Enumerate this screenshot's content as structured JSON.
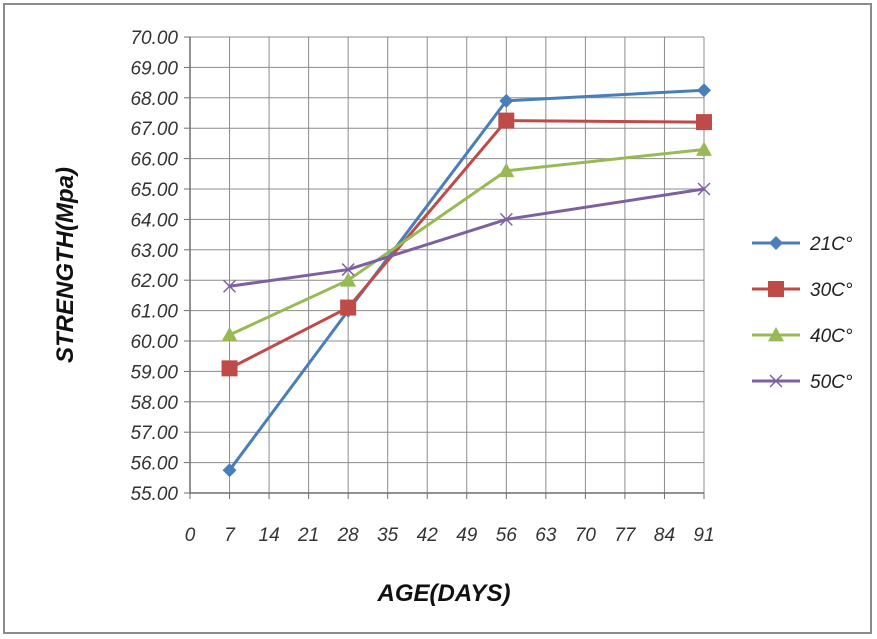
{
  "chart_data": {
    "type": "line",
    "xlabel": "AGE(DAYS)",
    "ylabel": "STRENGTH(Mpa)",
    "x": [
      7,
      28,
      56,
      91
    ],
    "xlim": [
      0,
      91
    ],
    "xticks": [
      "0",
      "7",
      "14",
      "21",
      "28",
      "35",
      "42",
      "49",
      "56",
      "63",
      "70",
      "77",
      "84",
      "91"
    ],
    "ylim": [
      55,
      70
    ],
    "yticks": [
      "55.00",
      "56.00",
      "57.00",
      "58.00",
      "59.00",
      "60.00",
      "61.00",
      "62.00",
      "63.00",
      "64.00",
      "65.00",
      "66.00",
      "67.00",
      "68.00",
      "69.00",
      "70.00"
    ],
    "grid": true,
    "legend_position": "right",
    "series": [
      {
        "name": "21C°",
        "color": "#4a7ebb",
        "marker": "diamond",
        "values": [
          55.75,
          61.0,
          67.9,
          68.25
        ]
      },
      {
        "name": "30C°",
        "color": "#be4b48",
        "marker": "square",
        "values": [
          59.1,
          61.1,
          67.25,
          67.2
        ]
      },
      {
        "name": "40C°",
        "color": "#98b954",
        "marker": "triangle",
        "values": [
          60.2,
          62.0,
          65.6,
          66.3
        ]
      },
      {
        "name": "50C°",
        "color": "#7d60a0",
        "marker": "x",
        "values": [
          61.8,
          62.35,
          64.0,
          65.0
        ]
      }
    ]
  }
}
